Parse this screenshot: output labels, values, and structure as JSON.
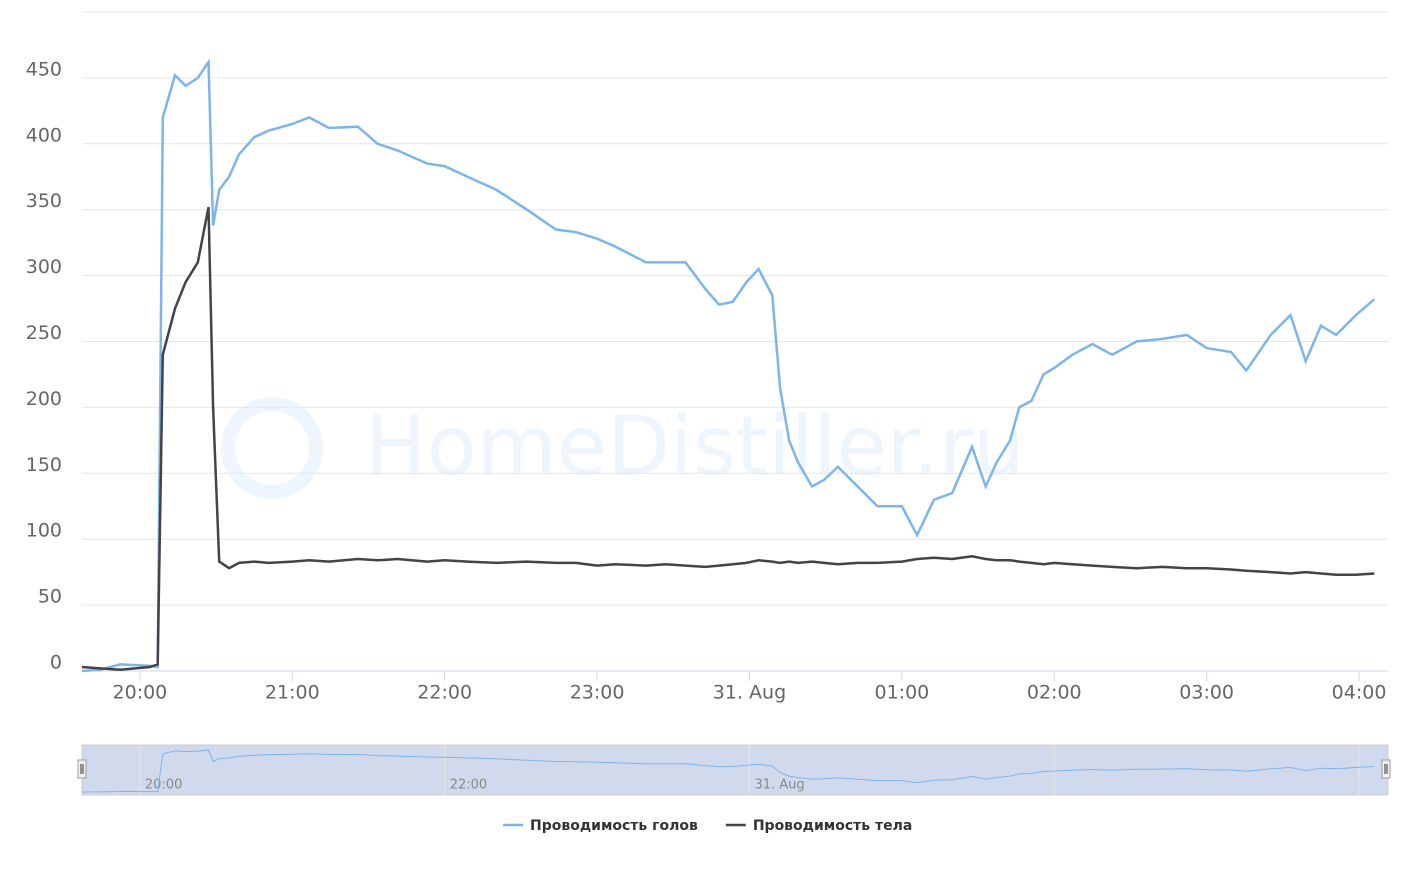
{
  "chart_data": {
    "type": "line",
    "watermark": "HomeDistiller.ru",
    "x": [
      19.62,
      19.74,
      19.87,
      20.065,
      20.117,
      20.15,
      20.23,
      20.3,
      20.38,
      20.45,
      20.48,
      20.52,
      20.585,
      20.65,
      20.75,
      20.845,
      21.0,
      21.11,
      21.24,
      21.43,
      21.56,
      21.69,
      21.885,
      22.0,
      22.15,
      22.34,
      22.54,
      22.73,
      22.86,
      23.0,
      23.12,
      23.32,
      23.45,
      23.58,
      23.71,
      23.8,
      23.89,
      23.98,
      24.06,
      24.15,
      24.2,
      24.26,
      24.32,
      24.41,
      24.49,
      24.58,
      24.71,
      24.84,
      25.0,
      25.1,
      25.21,
      25.33,
      25.46,
      25.55,
      25.62,
      25.71,
      25.77,
      25.85,
      25.93,
      26.0,
      26.12,
      26.25,
      26.38,
      26.54,
      26.71,
      26.87,
      27.0,
      27.16,
      27.26,
      27.42,
      27.55,
      27.65,
      27.75,
      27.85,
      27.98,
      28.1
    ],
    "series": [
      {
        "name": "Проводимость голов",
        "color": "#7cb5ec",
        "values": [
          0,
          1,
          5,
          4,
          3,
          420,
          452,
          444,
          450,
          462,
          338,
          365,
          375,
          392,
          405,
          410,
          415,
          420,
          412,
          413,
          400,
          395,
          385,
          383,
          375,
          365,
          350,
          335,
          333,
          328,
          322,
          310,
          310,
          310,
          290,
          278,
          280,
          295,
          305,
          285,
          215,
          175,
          158,
          140,
          145,
          155,
          140,
          125,
          125,
          103,
          130,
          135,
          170,
          140,
          158,
          175,
          200,
          205,
          225,
          230,
          240,
          248,
          240,
          250,
          252,
          255,
          245,
          242,
          228,
          255,
          270,
          235,
          262,
          255,
          270,
          282
        ]
      },
      {
        "name": "Проводимость тела",
        "color": "#434348",
        "values": [
          3,
          2,
          1,
          3,
          5,
          240,
          275,
          295,
          310,
          352,
          200,
          83,
          78,
          82,
          83,
          82,
          83,
          84,
          83,
          85,
          84,
          85,
          83,
          84,
          83,
          82,
          83,
          82,
          82,
          80,
          81,
          80,
          81,
          80,
          79,
          80,
          81,
          82,
          84,
          83,
          82,
          83,
          82,
          83,
          82,
          81,
          82,
          82,
          83,
          85,
          86,
          85,
          87,
          85,
          84,
          84,
          83,
          82,
          81,
          82,
          81,
          80,
          79,
          78,
          79,
          78,
          78,
          77,
          76,
          75,
          74,
          75,
          74,
          73,
          73,
          74
        ]
      }
    ],
    "xlim": [
      19.62,
      28.19
    ],
    "xticks": [
      {
        "value": 20,
        "label": "20:00"
      },
      {
        "value": 21,
        "label": "21:00"
      },
      {
        "value": 22,
        "label": "22:00"
      },
      {
        "value": 23,
        "label": "23:00"
      },
      {
        "value": 24,
        "label": "31. Aug"
      },
      {
        "value": 25,
        "label": "01:00"
      },
      {
        "value": 26,
        "label": "02:00"
      },
      {
        "value": 27,
        "label": "03:00"
      },
      {
        "value": 28,
        "label": "04:00"
      }
    ],
    "ylim": [
      0,
      500
    ],
    "yticks": [
      0,
      50,
      100,
      150,
      200,
      250,
      300,
      350,
      400,
      450
    ],
    "grid": true,
    "legend": "bottom"
  }
}
